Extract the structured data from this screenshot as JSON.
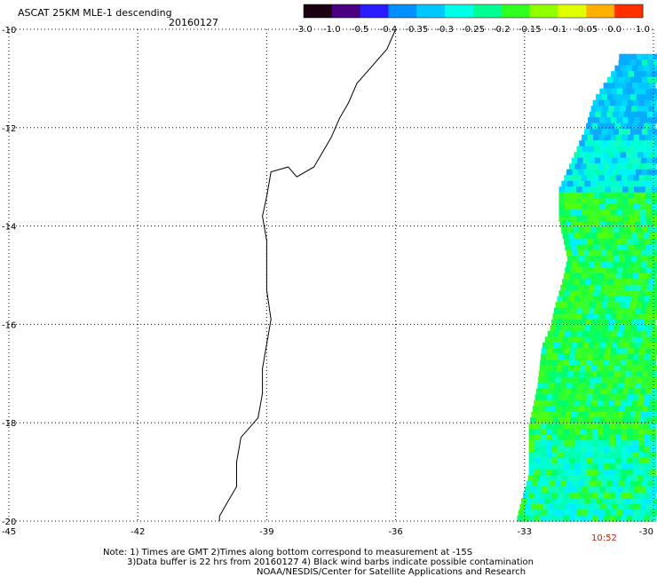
{
  "title": "ASCAT 25KM MLE-1 descending",
  "date": "20160127",
  "colorbar": {
    "tick_labels": [
      "-3.0",
      "-1.0",
      "-0.5",
      "-0.4",
      "-0.35",
      "-0.3",
      "-0.25",
      "-0.2",
      "-0.15",
      "-0.1",
      "-0.05",
      "0.0",
      "1.0"
    ],
    "colors": [
      "#1a0010",
      "#4a0080",
      "#2a1cff",
      "#0090ff",
      "#00c8ff",
      "#00ffe6",
      "#00ff90",
      "#30ff20",
      "#90ff00",
      "#e0ff00",
      "#ffb000",
      "#ff3000"
    ]
  },
  "axes": {
    "x_ticks": [
      "-45",
      "-42",
      "-39",
      "-36",
      "-33",
      "-30"
    ],
    "y_ticks": [
      "-10",
      "-12",
      "-14",
      "-16",
      "-18",
      "-20"
    ],
    "lon_range": [
      -45,
      -30
    ],
    "lat_range": [
      -20,
      -10
    ]
  },
  "time_label": "10:52",
  "notes": {
    "line1": "Note: 1) Times are GMT 2)Times along bottom correspond to measurement at -15S",
    "line2": "3)Data buffer is 22 hrs from 20160127 4) Black wind barbs indicate possible contamination",
    "line3": "NOAA/NESDIS/Center for Satellite Applications and Research"
  },
  "swath_profile": [
    {
      "lat": -10.6,
      "lon": -30.8
    },
    {
      "lat": -11.4,
      "lon": -31.4
    },
    {
      "lat": -12.0,
      "lon": -31.6
    },
    {
      "lat": -12.6,
      "lon": -31.9
    },
    {
      "lat": -13.2,
      "lon": -32.2
    },
    {
      "lat": -13.8,
      "lon": -32.2
    },
    {
      "lat": -14.6,
      "lon": -32.0
    },
    {
      "lat": -15.0,
      "lon": -32.1
    },
    {
      "lat": -15.6,
      "lon": -32.3
    },
    {
      "lat": -16.0,
      "lon": -32.4
    },
    {
      "lat": -16.4,
      "lon": -32.6
    },
    {
      "lat": -17.2,
      "lon": -32.7
    },
    {
      "lat": -17.6,
      "lon": -32.8
    },
    {
      "lat": -18.0,
      "lon": -32.9
    },
    {
      "lat": -19.0,
      "lon": -32.9
    },
    {
      "lat": -19.6,
      "lon": -33.1
    },
    {
      "lat": -20.0,
      "lon": -33.2
    }
  ],
  "coastline": [
    [
      -36.0,
      -10.0
    ],
    [
      -36.2,
      -10.4
    ],
    [
      -36.6,
      -10.8
    ],
    [
      -36.9,
      -11.1
    ],
    [
      -37.1,
      -11.5
    ],
    [
      -37.3,
      -11.8
    ],
    [
      -37.5,
      -12.2
    ],
    [
      -37.7,
      -12.5
    ],
    [
      -37.9,
      -12.8
    ],
    [
      -38.3,
      -13.0
    ],
    [
      -38.5,
      -12.8
    ],
    [
      -38.9,
      -12.9
    ],
    [
      -39.0,
      -13.4
    ],
    [
      -39.1,
      -13.8
    ],
    [
      -39.0,
      -14.3
    ],
    [
      -39.0,
      -14.8
    ],
    [
      -39.0,
      -15.3
    ],
    [
      -38.9,
      -15.9
    ],
    [
      -39.0,
      -16.4
    ],
    [
      -39.1,
      -16.9
    ],
    [
      -39.1,
      -17.4
    ],
    [
      -39.2,
      -17.9
    ],
    [
      -39.6,
      -18.3
    ],
    [
      -39.7,
      -18.8
    ],
    [
      -39.7,
      -19.3
    ],
    [
      -39.9,
      -19.6
    ],
    [
      -40.1,
      -19.9
    ],
    [
      -40.1,
      -20.0
    ]
  ]
}
